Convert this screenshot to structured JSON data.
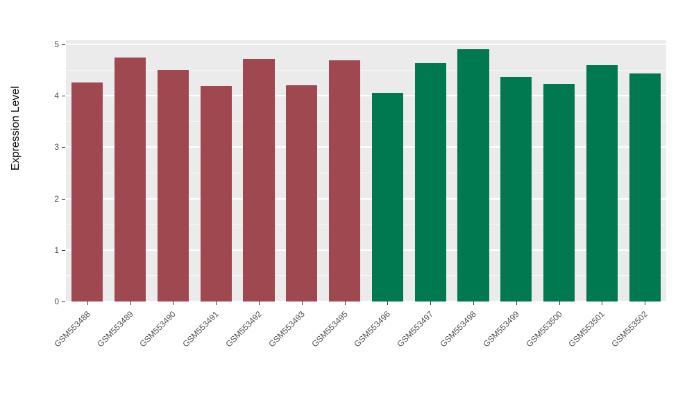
{
  "chart_data": {
    "type": "bar",
    "title": "",
    "xlabel": "",
    "ylabel": "Expression Level",
    "ylim": [
      0,
      5.08
    ],
    "yticks": [
      "0",
      "1",
      "2",
      "3",
      "4",
      "5"
    ],
    "grid": true,
    "legend_position": "none",
    "panel_bg": "#EBEBEB",
    "grid_color": "#FFFFFF",
    "categories": [
      "GSM553488",
      "GSM553489",
      "GSM553490",
      "GSM553491",
      "GSM553492",
      "GSM553493",
      "GSM553495",
      "GSM553496",
      "GSM553497",
      "GSM553498",
      "GSM553499",
      "GSM553500",
      "GSM553501",
      "GSM553502"
    ],
    "values": [
      4.26,
      4.75,
      4.5,
      4.19,
      4.71,
      4.2,
      4.69,
      4.05,
      4.64,
      4.9,
      4.37,
      4.23,
      4.6,
      4.44
    ],
    "bar_colors": [
      "#A04850",
      "#A04850",
      "#A04850",
      "#A04850",
      "#A04850",
      "#A04850",
      "#A04850",
      "#007850",
      "#007850",
      "#007850",
      "#007850",
      "#007850",
      "#007850",
      "#007850"
    ]
  }
}
